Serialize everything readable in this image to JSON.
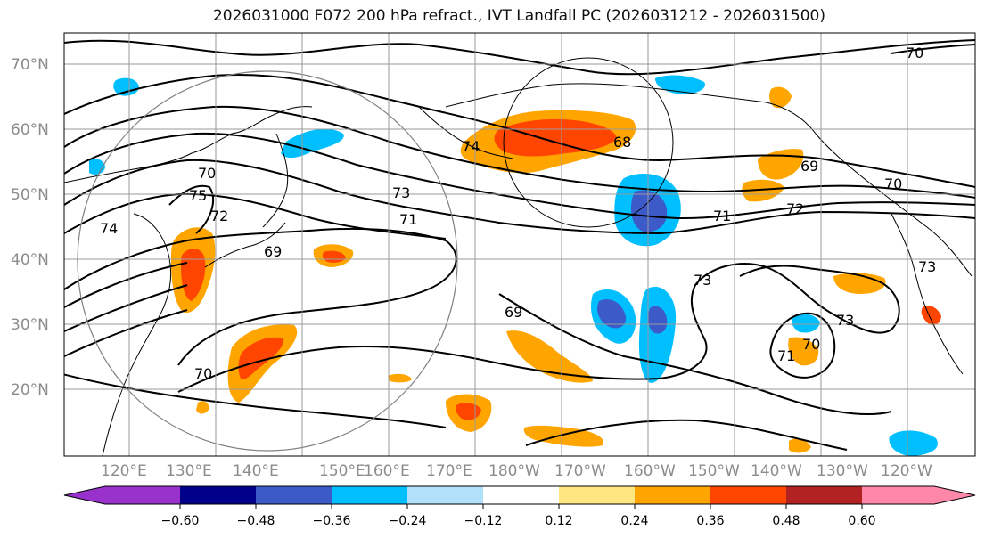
{
  "title": "2026031000 F072 200 hPa refract., IVT Landfall PC (2026031212 - 2026031500)",
  "latitude_labels": [
    "70°N",
    "60°N",
    "50°N",
    "40°N",
    "30°N",
    "20°N"
  ],
  "longitude_labels": [
    "120°E",
    "130°E",
    "140°E",
    "150°E",
    "160°E",
    "170°E",
    "180°W",
    "170°W",
    "160°W",
    "150°W",
    "140°W",
    "130°W",
    "120°W"
  ],
  "contour_labels": [
    "70",
    "69",
    "71",
    "73",
    "75",
    "74",
    "72",
    "68",
    "74",
    "73",
    "71",
    "69",
    "70",
    "72",
    "70",
    "73",
    "73",
    "71",
    "70",
    "69",
    "70"
  ],
  "colorbar": {
    "tick_labels": [
      "−0.60",
      "−0.48",
      "−0.36",
      "−0.24",
      "−0.12",
      "0.12",
      "0.24",
      "0.36",
      "0.48",
      "0.60"
    ],
    "colors": [
      "#9932cc",
      "#00008b",
      "#3c5ac8",
      "#00bfff",
      "#b0e0fa",
      "#ffffff",
      "#ffe680",
      "#ffa500",
      "#ff4500",
      "#b22222",
      "#ff88aa"
    ]
  },
  "colors": {
    "contour": "#000000",
    "coast": "#000000",
    "grid": "#9a9a9a",
    "circle": "#808080"
  }
}
